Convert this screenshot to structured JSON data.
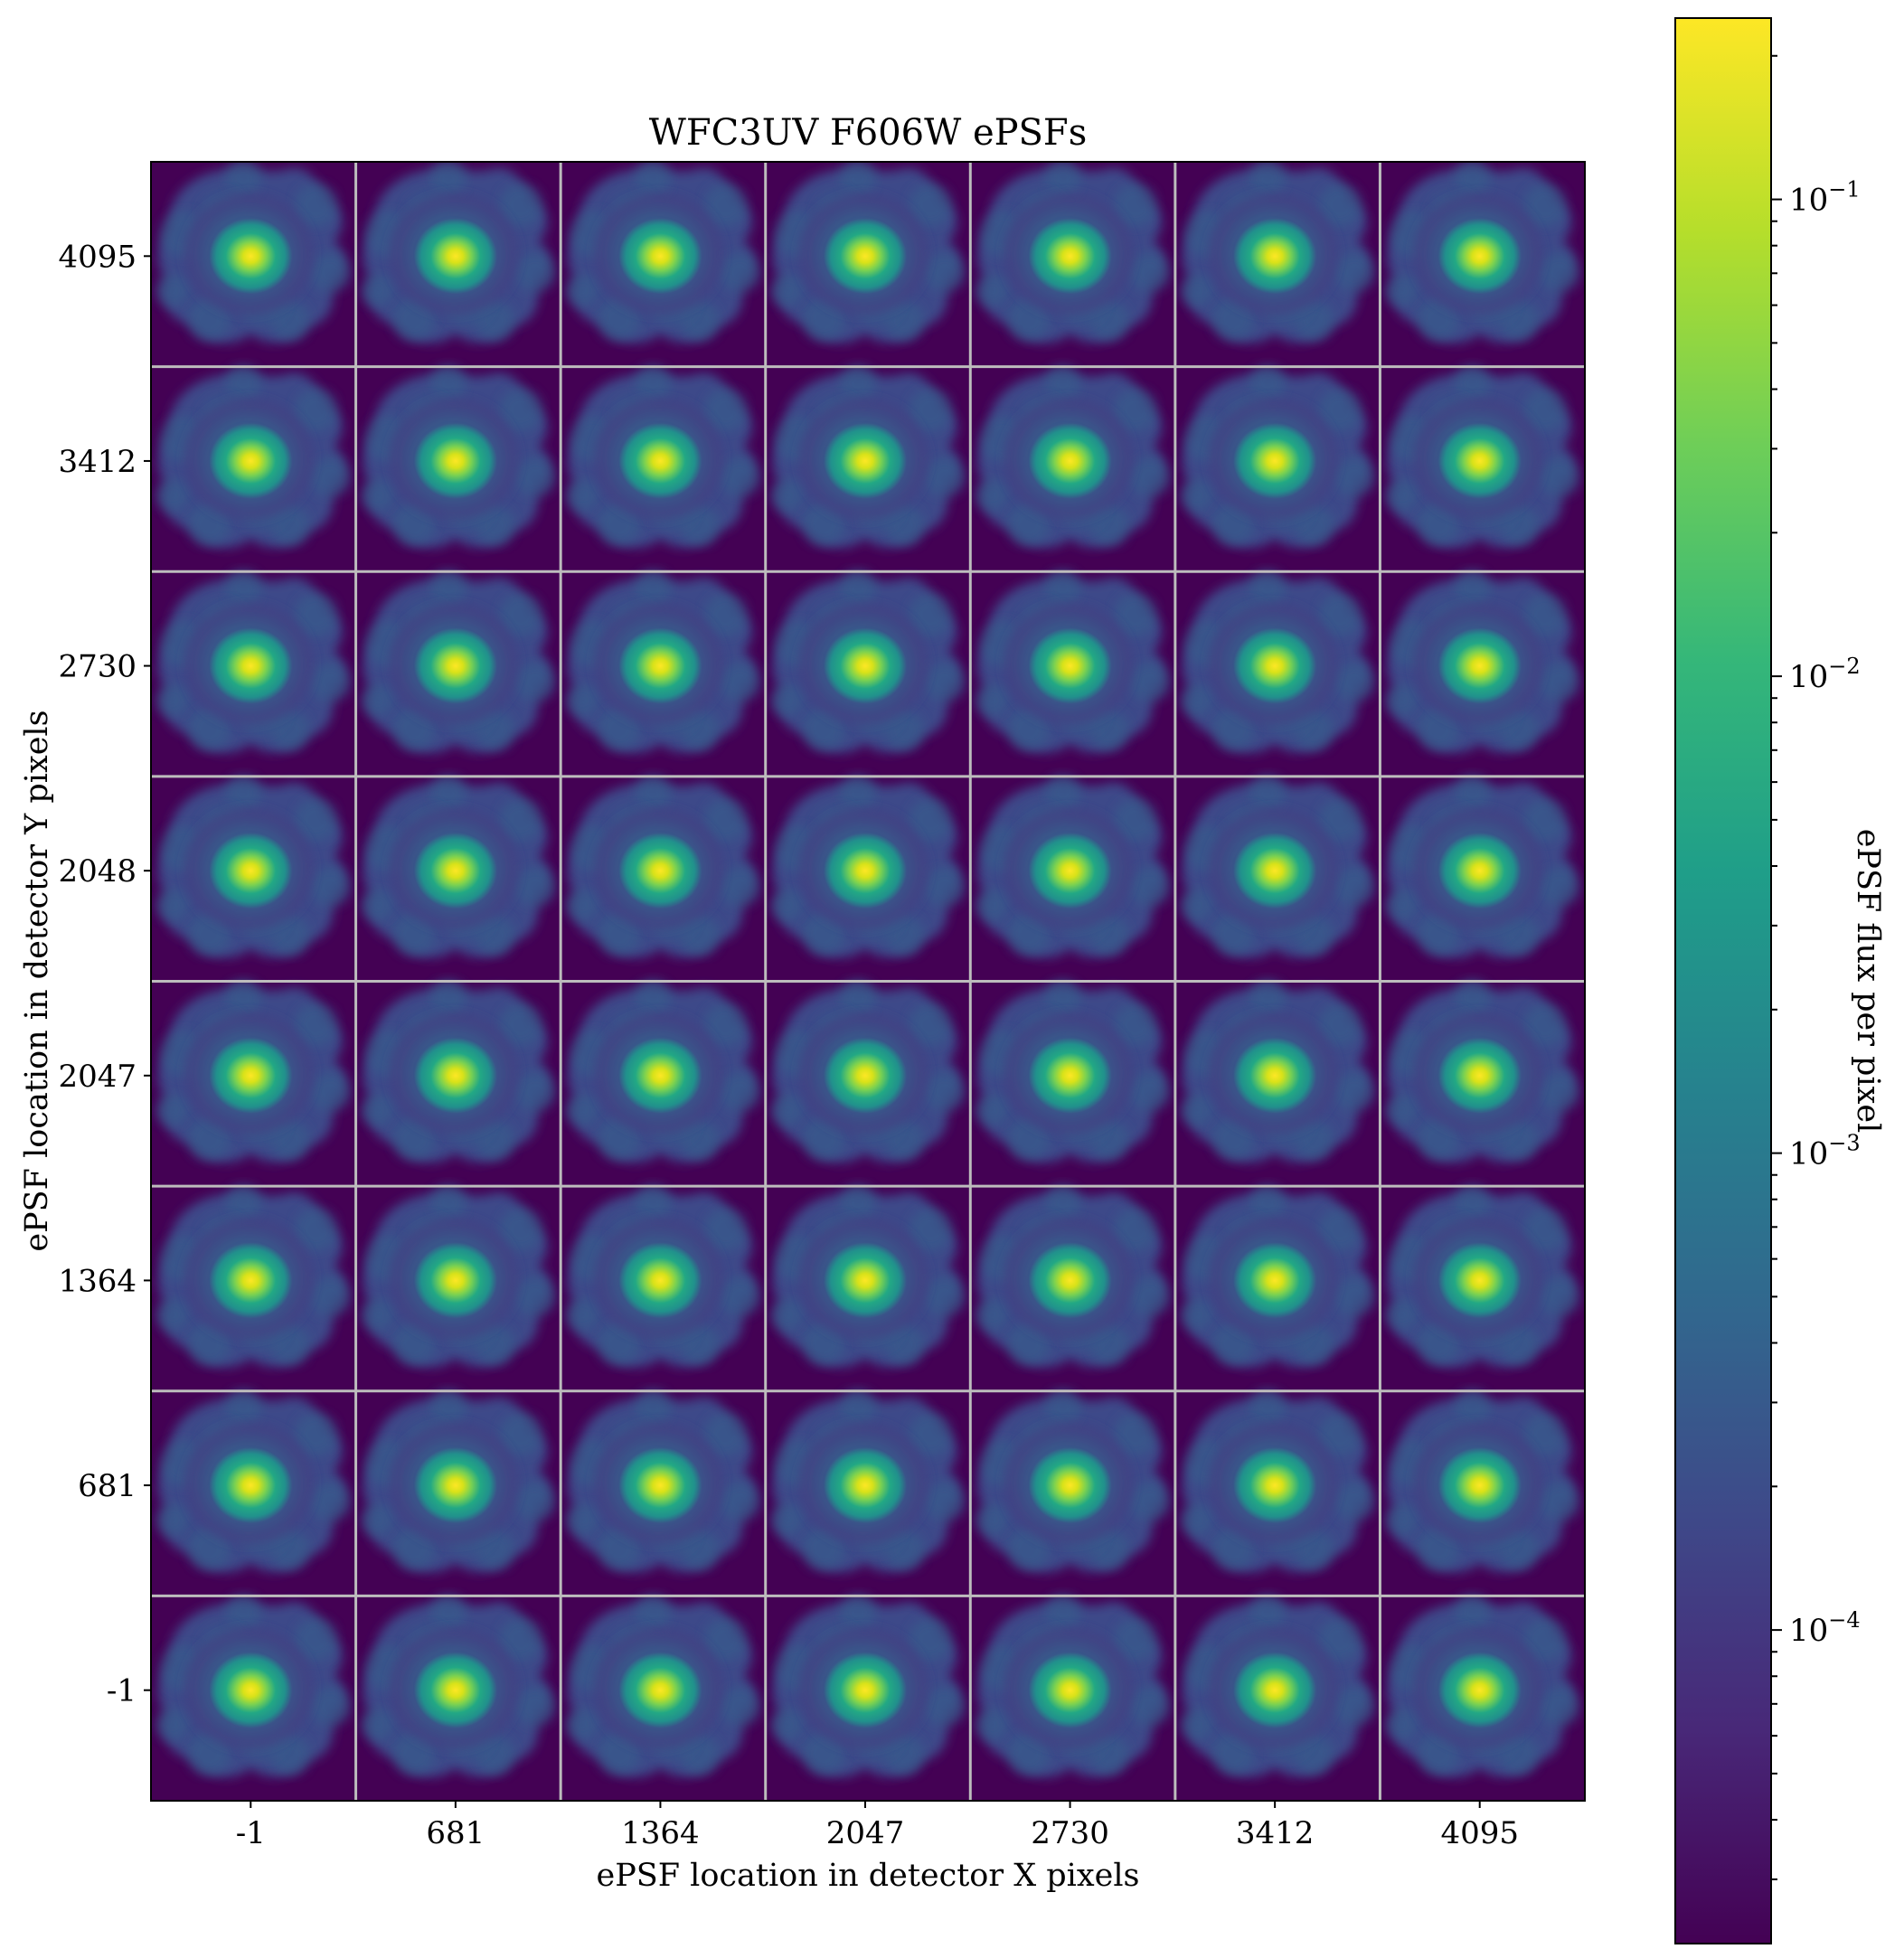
{
  "chart_data": {
    "type": "heatmap",
    "title": "WFC3UV F606W ePSFs",
    "xlabel": "ePSF location in detector X pixels",
    "ylabel": "ePSF location in detector Y pixels",
    "x_ticks": [
      "-1",
      "681",
      "1364",
      "2047",
      "2730",
      "3412",
      "4095"
    ],
    "y_ticks_top_to_bottom": [
      "4095",
      "3412",
      "2730",
      "2048",
      "2047",
      "1364",
      "681",
      "-1"
    ],
    "grid": {
      "columns": 7,
      "rows": 8,
      "separator_color": "#bdbdbd"
    },
    "colorbar": {
      "label": "ePSF flux per pixel",
      "scale": "log",
      "range": [
        2.2e-05,
        0.24
      ],
      "major_ticks": [
        {
          "value": 0.1,
          "base": "10",
          "exp": "−1"
        },
        {
          "value": 0.01,
          "base": "10",
          "exp": "−2"
        },
        {
          "value": 0.001,
          "base": "10",
          "exp": "−3"
        },
        {
          "value": 0.0001,
          "base": "10",
          "exp": "−4"
        }
      ],
      "colormap": "viridis",
      "colormap_stops": [
        "#440154",
        "#482878",
        "#3e4989",
        "#31688e",
        "#26828e",
        "#1f9e89",
        "#35b779",
        "#6ece58",
        "#b5de2b",
        "#fde725"
      ]
    },
    "psf": {
      "background_value": 2.2e-05,
      "peak_value": 0.2,
      "halo_value": 0.0008,
      "shape": "irregular lobed halo, bright core slightly left of center"
    }
  }
}
